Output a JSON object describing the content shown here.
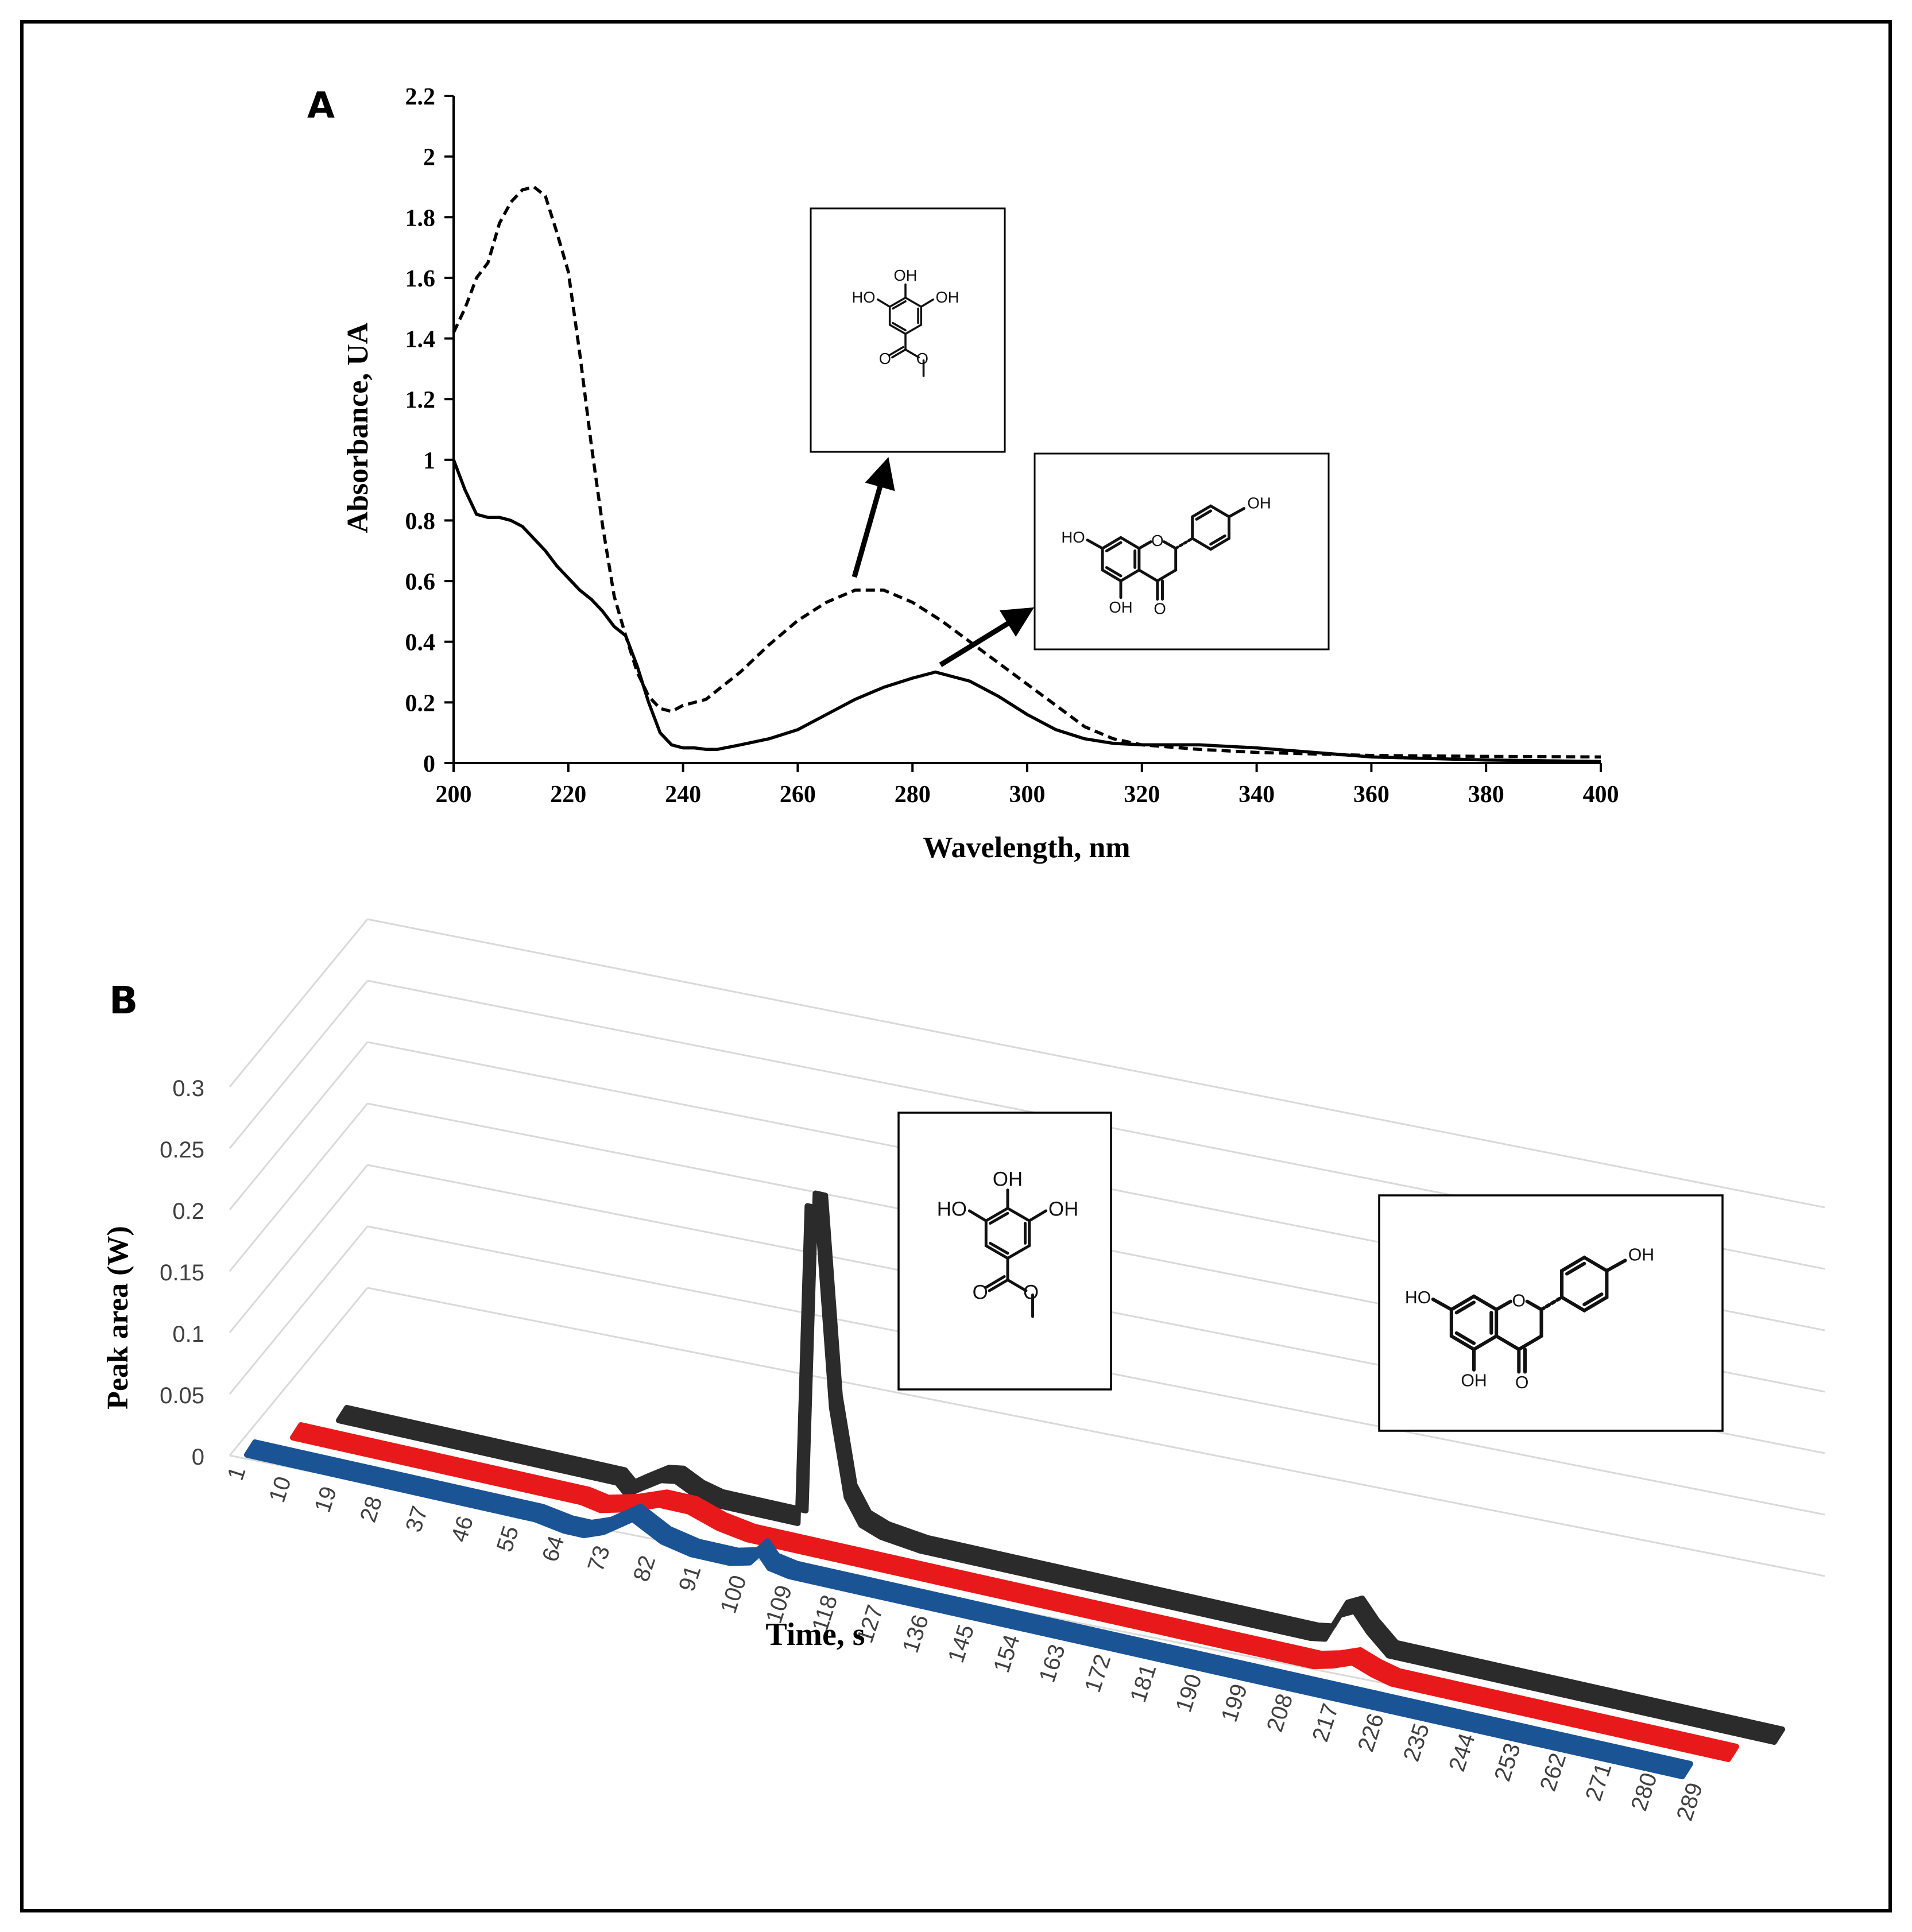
{
  "panel_labels": {
    "a": "A",
    "b": "B"
  },
  "icons": [
    "methyl-gallate-structure",
    "naringenin-structure",
    "arrow-icon"
  ],
  "molecule_labels": {
    "gallate": {
      "oh_top": "OH",
      "oh_left": "HO",
      "oh_right": "OH",
      "carbonyl_o": "O",
      "ester_o": "O"
    },
    "naringenin": {
      "oh_para": "OH",
      "oh_7": "HO",
      "ring_o": "O",
      "oh_5": "OH",
      "carbonyl_o": "O"
    }
  },
  "colors": {
    "black_series": "#2b2b2b",
    "red_series": "#e8191a",
    "blue_series": "#1a5494",
    "grid": "#d9d9d9"
  },
  "chart_data": [
    {
      "id": "A",
      "type": "line",
      "title": "",
      "xlabel": "Wavelength, nm",
      "ylabel": "Absorbance, UA",
      "xlim": [
        200,
        400
      ],
      "ylim": [
        0,
        2.2
      ],
      "x_ticks": [
        200,
        220,
        240,
        260,
        280,
        300,
        320,
        340,
        360,
        380,
        400
      ],
      "x_tick_labels": [
        "200",
        "220",
        "240",
        "260",
        "280",
        "300",
        "320",
        "340",
        "360",
        "380",
        "400"
      ],
      "y_ticks": [
        0,
        0.2,
        0.4,
        0.6,
        0.8,
        1,
        1.2,
        1.4,
        1.6,
        1.8,
        2,
        2.2
      ],
      "y_tick_labels": [
        "0",
        "0.2",
        "0.4",
        "0.6",
        "0.8",
        "1",
        "1.2",
        "1.4",
        "1.6",
        "1.8",
        "2",
        "2.2"
      ],
      "grid": false,
      "series": [
        {
          "name": "dashed",
          "style": "dashed",
          "x": [
            200,
            202,
            204,
            206,
            208,
            210,
            212,
            214,
            216,
            218,
            220,
            222,
            224,
            226,
            228,
            230,
            232,
            234,
            236,
            238,
            240,
            242,
            244,
            246,
            250,
            255,
            260,
            265,
            270,
            275,
            280,
            285,
            290,
            295,
            300,
            305,
            310,
            315,
            320,
            330,
            340,
            350,
            360,
            380,
            400
          ],
          "y": [
            1.42,
            1.5,
            1.6,
            1.65,
            1.78,
            1.85,
            1.89,
            1.9,
            1.87,
            1.75,
            1.62,
            1.35,
            1.05,
            0.78,
            0.55,
            0.42,
            0.3,
            0.22,
            0.18,
            0.17,
            0.19,
            0.2,
            0.21,
            0.24,
            0.3,
            0.39,
            0.47,
            0.53,
            0.57,
            0.57,
            0.53,
            0.47,
            0.4,
            0.33,
            0.26,
            0.19,
            0.12,
            0.08,
            0.06,
            0.045,
            0.035,
            0.03,
            0.025,
            0.022,
            0.02
          ]
        },
        {
          "name": "solid",
          "style": "solid",
          "x": [
            200,
            202,
            204,
            206,
            208,
            210,
            212,
            214,
            216,
            218,
            220,
            222,
            224,
            226,
            228,
            230,
            232,
            234,
            236,
            238,
            240,
            242,
            244,
            246,
            250,
            255,
            260,
            265,
            270,
            275,
            280,
            284,
            290,
            295,
            300,
            305,
            310,
            315,
            320,
            330,
            340,
            350,
            360,
            380,
            400
          ],
          "y": [
            1.0,
            0.9,
            0.82,
            0.81,
            0.81,
            0.8,
            0.78,
            0.74,
            0.7,
            0.65,
            0.61,
            0.57,
            0.54,
            0.5,
            0.45,
            0.42,
            0.32,
            0.2,
            0.1,
            0.06,
            0.05,
            0.05,
            0.045,
            0.045,
            0.06,
            0.08,
            0.11,
            0.16,
            0.21,
            0.25,
            0.28,
            0.3,
            0.27,
            0.22,
            0.16,
            0.11,
            0.08,
            0.065,
            0.06,
            0.06,
            0.05,
            0.035,
            0.02,
            0.01,
            0.005
          ]
        }
      ],
      "annotations": [
        {
          "target": "methyl-gallate",
          "points_to": {
            "x": 270,
            "y": 0.6
          }
        },
        {
          "target": "naringenin",
          "points_to": {
            "x": 280,
            "y": 0.33
          }
        }
      ]
    },
    {
      "id": "B",
      "type": "line",
      "subtype": "3d-ribbon",
      "title": "",
      "xlabel": "Time, s",
      "ylabel": "Peak area (W)",
      "ylim": [
        0,
        0.3
      ],
      "y_ticks": [
        0,
        0.05,
        0.1,
        0.15,
        0.2,
        0.25,
        0.3
      ],
      "y_tick_labels": [
        "0",
        "0.05",
        "0.1",
        "0.15",
        "0.2",
        "0.25",
        "0.3"
      ],
      "x_tick_labels": [
        "1",
        "10",
        "19",
        "28",
        "37",
        "46",
        "55",
        "64",
        "73",
        "82",
        "91",
        "100",
        "109",
        "118",
        "127",
        "136",
        "145",
        "154",
        "163",
        "172",
        "181",
        "190",
        "199",
        "208",
        "217",
        "226",
        "235",
        "244",
        "253",
        "262",
        "271",
        "280",
        "289"
      ],
      "x_range": [
        1,
        295
      ],
      "grid": true,
      "series": [
        {
          "name": "blue",
          "color": "#1a5494",
          "x": [
            1,
            60,
            66,
            70,
            74,
            80,
            86,
            92,
            100,
            104,
            106,
            108,
            112,
            118,
            295
          ],
          "y": [
            0,
            0,
            -0.004,
            -0.004,
            0.002,
            0.018,
            0.005,
            0,
            0,
            0.004,
            0.013,
            0.003,
            0,
            0,
            0
          ]
        },
        {
          "name": "red",
          "color": "#e8191a",
          "x": [
            1,
            60,
            64,
            70,
            76,
            82,
            88,
            94,
            100,
            210,
            214,
            218,
            222,
            226,
            295
          ],
          "y": [
            0,
            0,
            -0.003,
            0.003,
            0.012,
            0.012,
            0.004,
            0,
            0,
            0,
            0.004,
            0.01,
            0.004,
            0,
            0
          ]
        },
        {
          "name": "black",
          "color": "#2b2b2b",
          "x": [
            1,
            58,
            60,
            63,
            67,
            70,
            74,
            78,
            95,
            97,
            99,
            102,
            105,
            108,
            112,
            120,
            200,
            203,
            206,
            209,
            212,
            216,
            220,
            295
          ],
          "y": [
            0,
            0,
            -0.008,
            0,
            0.01,
            0.012,
            0.004,
            0,
            0,
            0.26,
            0.26,
            0.1,
            0.03,
            0.01,
            0.004,
            0,
            0,
            0.002,
            0.024,
            0.03,
            0.015,
            0,
            0,
            0
          ]
        }
      ],
      "series_order_front_to_back": [
        "blue",
        "red",
        "black"
      ]
    }
  ]
}
